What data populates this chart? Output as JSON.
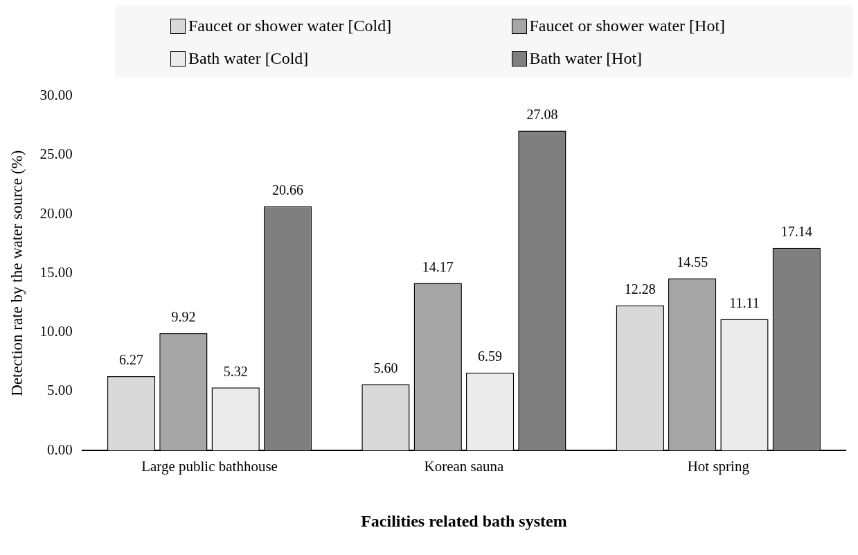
{
  "chart_data": {
    "type": "bar",
    "xlabel": "Facilities related bath system",
    "ylabel": "Detection rate by the water source (%)",
    "categories": [
      "Large public bathhouse",
      "Korean sauna",
      "Hot spring"
    ],
    "series": [
      {
        "name": "Faucet or shower water [Cold]",
        "color": "#d9d9d9",
        "values": [
          6.27,
          5.6,
          12.28
        ],
        "value_labels": [
          "6.27",
          "5.60",
          "12.28"
        ]
      },
      {
        "name": "Faucet or shower water [Hot]",
        "color": "#a6a6a6",
        "values": [
          9.92,
          14.17,
          14.55
        ],
        "value_labels": [
          "9.92",
          "14.17",
          "14.55"
        ]
      },
      {
        "name": "Bath water [Cold]",
        "color": "#ebebeb",
        "values": [
          5.32,
          6.59,
          11.11
        ],
        "value_labels": [
          "5.32",
          "6.59",
          "11.11"
        ]
      },
      {
        "name": "Bath water [Hot]",
        "color": "#7f7f7f",
        "values": [
          20.66,
          27.08,
          17.14
        ],
        "value_labels": [
          "20.66",
          "27.08",
          "17.14"
        ]
      }
    ],
    "ylim": [
      0,
      30
    ],
    "yticks": [
      {
        "value": 0,
        "label": "0.00"
      },
      {
        "value": 5,
        "label": "5.00"
      },
      {
        "value": 10,
        "label": "10.00"
      },
      {
        "value": 15,
        "label": "15.00"
      },
      {
        "value": 20,
        "label": "20.00"
      },
      {
        "value": 25,
        "label": "25.00"
      },
      {
        "value": 30,
        "label": "30.00"
      }
    ],
    "grid": false,
    "legend": "top"
  }
}
